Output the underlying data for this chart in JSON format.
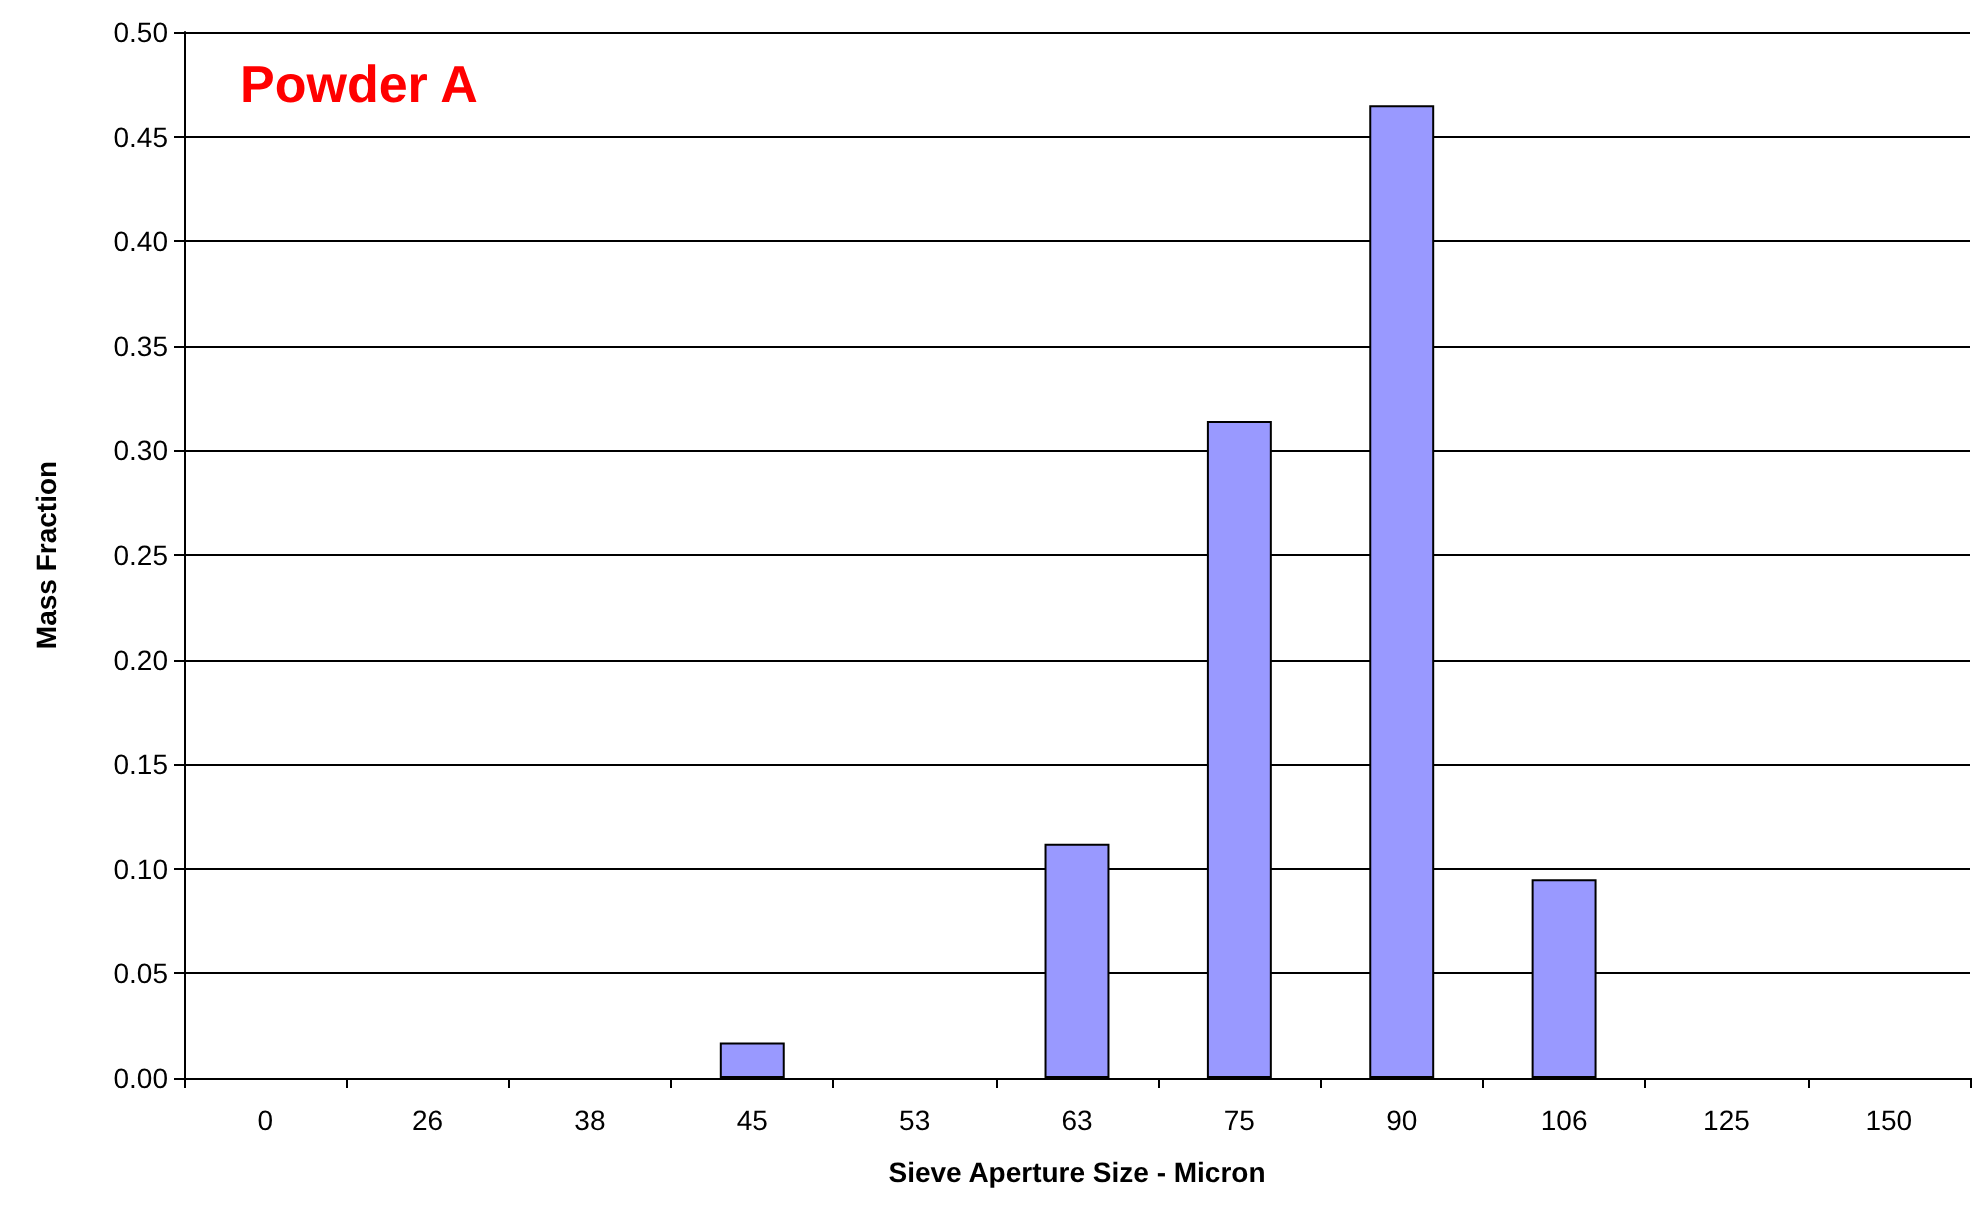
{
  "chart_data": {
    "type": "bar",
    "title": "Powder A",
    "xlabel": "Sieve Aperture Size - Micron",
    "ylabel": "Mass Fraction",
    "categories": [
      "0",
      "26",
      "38",
      "45",
      "53",
      "63",
      "75",
      "90",
      "106",
      "125",
      "150"
    ],
    "values": [
      0,
      0,
      0,
      0.017,
      0,
      0.112,
      0.314,
      0.465,
      0.095,
      0,
      0
    ],
    "color": "#9999ff",
    "ylim": [
      0,
      0.5
    ],
    "yticks": [
      {
        "value": 0,
        "label": "0.00"
      },
      0.05,
      {
        "value": 0.1,
        "label": "0.10"
      },
      0.15,
      {
        "value": 0.2,
        "label": "0.20"
      },
      0.25,
      {
        "value": 0.3,
        "label": "0.30"
      },
      0.35,
      {
        "value": 0.4,
        "label": "0.40"
      },
      0.45,
      {
        "value": 0.5,
        "label": "0.50"
      }
    ],
    "grid": "y"
  }
}
